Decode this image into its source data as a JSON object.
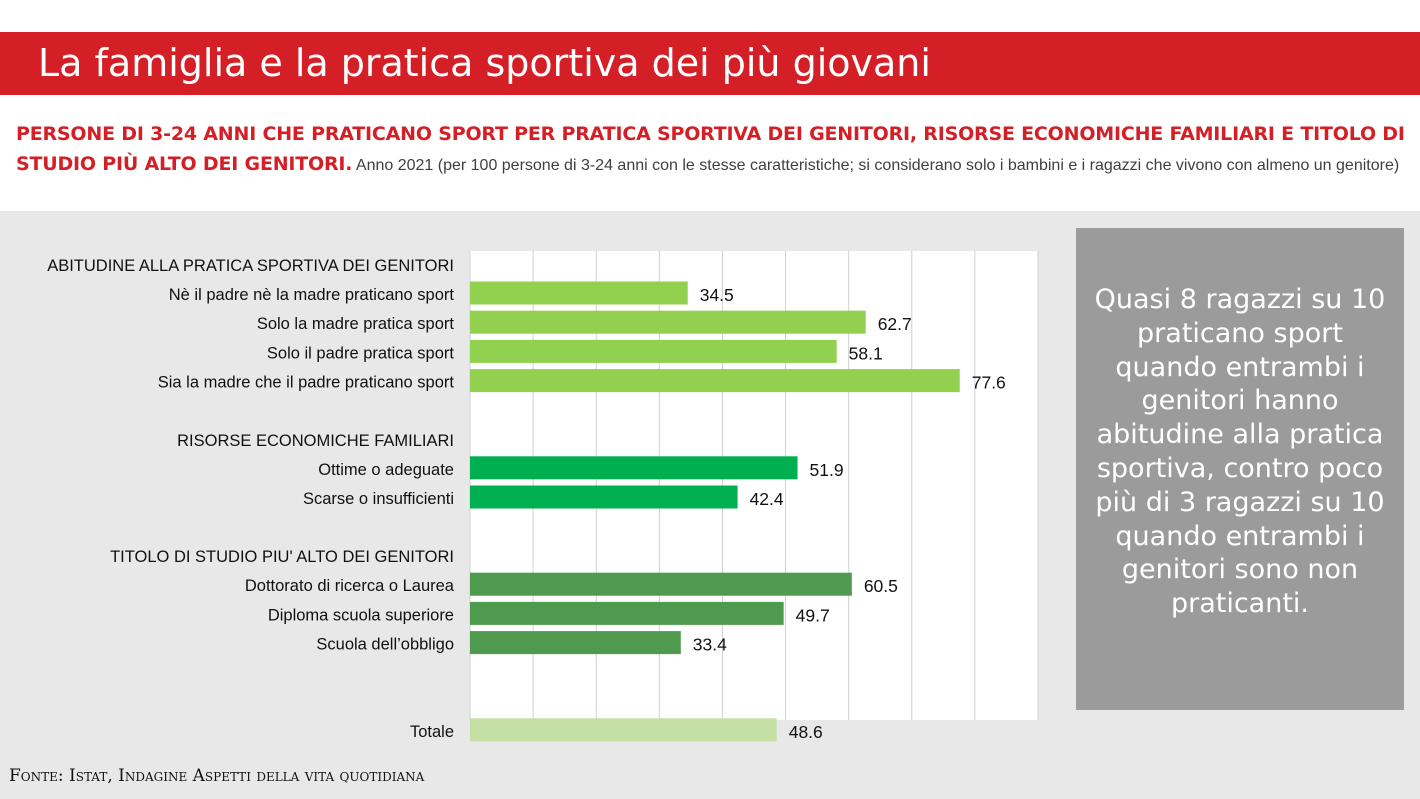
{
  "header": {
    "title": "La famiglia e la pratica sportiva dei più giovani"
  },
  "subtitle": {
    "strong": "PERSONE DI 3-24 ANNI CHE PRATICANO SPORT PER PRATICA SPORTIVA DEI GENITORI, RISORSE ECONOMICHE FAMILIARI E TITOLO DI STUDIO PIÙ ALTO DEI GENITORI.",
    "rest": " Anno 2021 (per 100 persone di 3-24 anni con le stesse caratteristiche; si considerano solo i bambini e i ragazzi che vivono con almeno un genitore)"
  },
  "colors": {
    "banner": "#d41f26",
    "light_green": "#92d050",
    "mid_green": "#00b050",
    "dark_green": "#4e9a4e",
    "pale_green": "#c5e0a5",
    "callout_bg": "#9b9b9b"
  },
  "chart_data": {
    "type": "bar",
    "orientation": "horizontal",
    "xlim": [
      0,
      90
    ],
    "grid": true,
    "sections": [
      {
        "label": "ABITUDINE ALLA PRATICA SPORTIVA DEI GENITORI",
        "color": "#92d050",
        "items": [
          {
            "label": "Nè il padre nè la madre praticano sport",
            "value": 34.5
          },
          {
            "label": "Solo la madre pratica sport",
            "value": 62.7
          },
          {
            "label": "Solo il padre pratica sport",
            "value": 58.1
          },
          {
            "label": "Sia la madre che il padre praticano sport",
            "value": 77.6
          }
        ]
      },
      {
        "label": "RISORSE ECONOMICHE FAMILIARI",
        "color": "#00b050",
        "items": [
          {
            "label": "Ottime o adeguate ",
            "value": 51.9
          },
          {
            "label": "Scarse o insufficienti",
            "value": 42.4
          }
        ]
      },
      {
        "label": "TITOLO DI STUDIO PIU' ALTO DEI GENITORI",
        "color": "#4e9a4e",
        "items": [
          {
            "label": "Dottorato di ricerca o Laurea",
            "value": 60.5
          },
          {
            "label": "Diploma scuola superiore",
            "value": 49.7
          },
          {
            "label": "Scuola dell’obbligo",
            "value": 33.4
          }
        ]
      },
      {
        "label": "",
        "color": "#c5e0a5",
        "items": [
          {
            "label": "Totale",
            "value": 48.6
          }
        ]
      }
    ]
  },
  "callout": {
    "text": "Quasi 8 ragazzi su 10 praticano sport quando entrambi i genitori hanno abitudine alla pratica sportiva, contro poco più di 3 ragazzi su 10 quando entrambi i genitori sono non praticanti."
  },
  "source": {
    "text": "Fonte: Istat, Indagine Aspetti della vita quotidiana"
  }
}
